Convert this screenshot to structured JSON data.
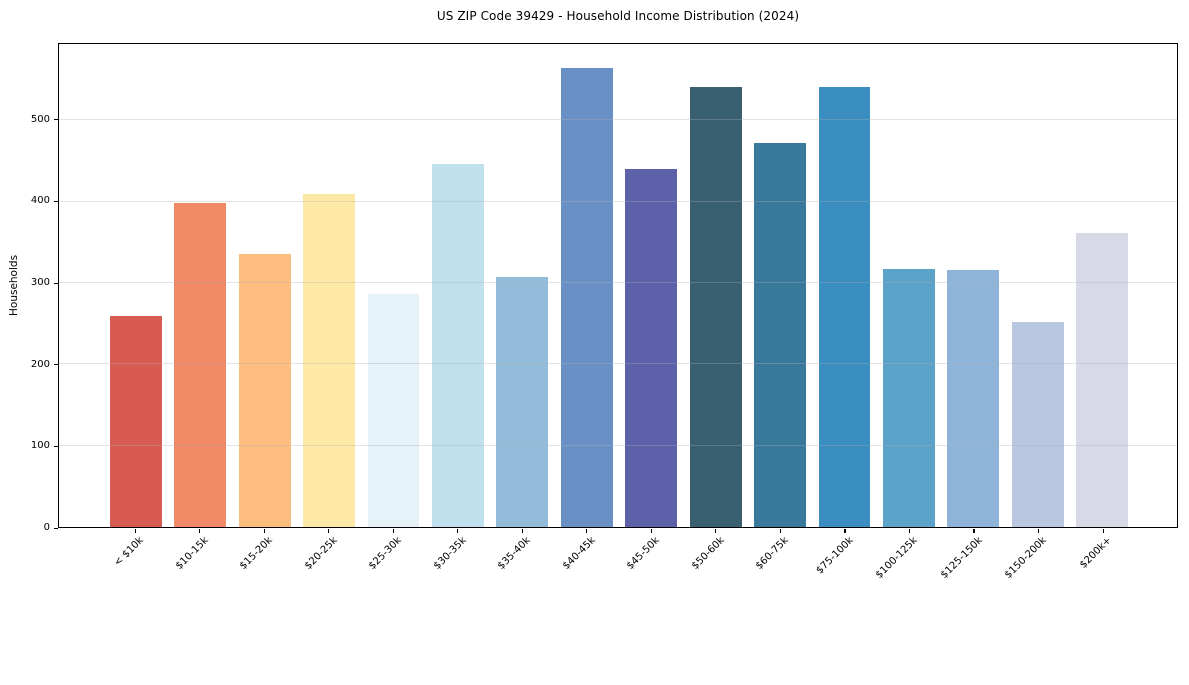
{
  "chart_data": {
    "type": "bar",
    "title": "US ZIP Code 39429 - Household Income Distribution (2024)",
    "xlabel": "",
    "ylabel": "Households",
    "ylim": [
      0,
      594
    ],
    "yticks": [
      0,
      100,
      200,
      300,
      400,
      500
    ],
    "grid": true,
    "legend": "none",
    "categories": [
      "< $10k",
      "$10-15k",
      "$15-20k",
      "$20-25k",
      "$25-30k",
      "$30-35k",
      "$35-40k",
      "$40-45k",
      "$45-50k",
      "$50-60k",
      "$60-75k",
      "$75-100k",
      "$100-125k",
      "$125-150k",
      "$150-200k",
      "$200k+"
    ],
    "values": [
      259,
      398,
      336,
      410,
      287,
      446,
      308,
      564,
      440,
      541,
      472,
      541,
      317,
      316,
      252,
      361
    ],
    "bar_colors": [
      "#d85b52",
      "#f28a68",
      "#fcbd7e",
      "#fde8a6",
      "#e5f2f7",
      "#bfe0ec",
      "#92bcd9",
      "#6990c5",
      "#5d61aa",
      "#386070",
      "#38799c",
      "#3a8ec2",
      "#5ba3c9",
      "#8fb4d9",
      "#b9c8e0",
      "#d7d9e7"
    ]
  },
  "colors": {
    "background": "#ffffff",
    "spine": "#000000",
    "grid": "#b0b0b0",
    "text": "#000000"
  }
}
